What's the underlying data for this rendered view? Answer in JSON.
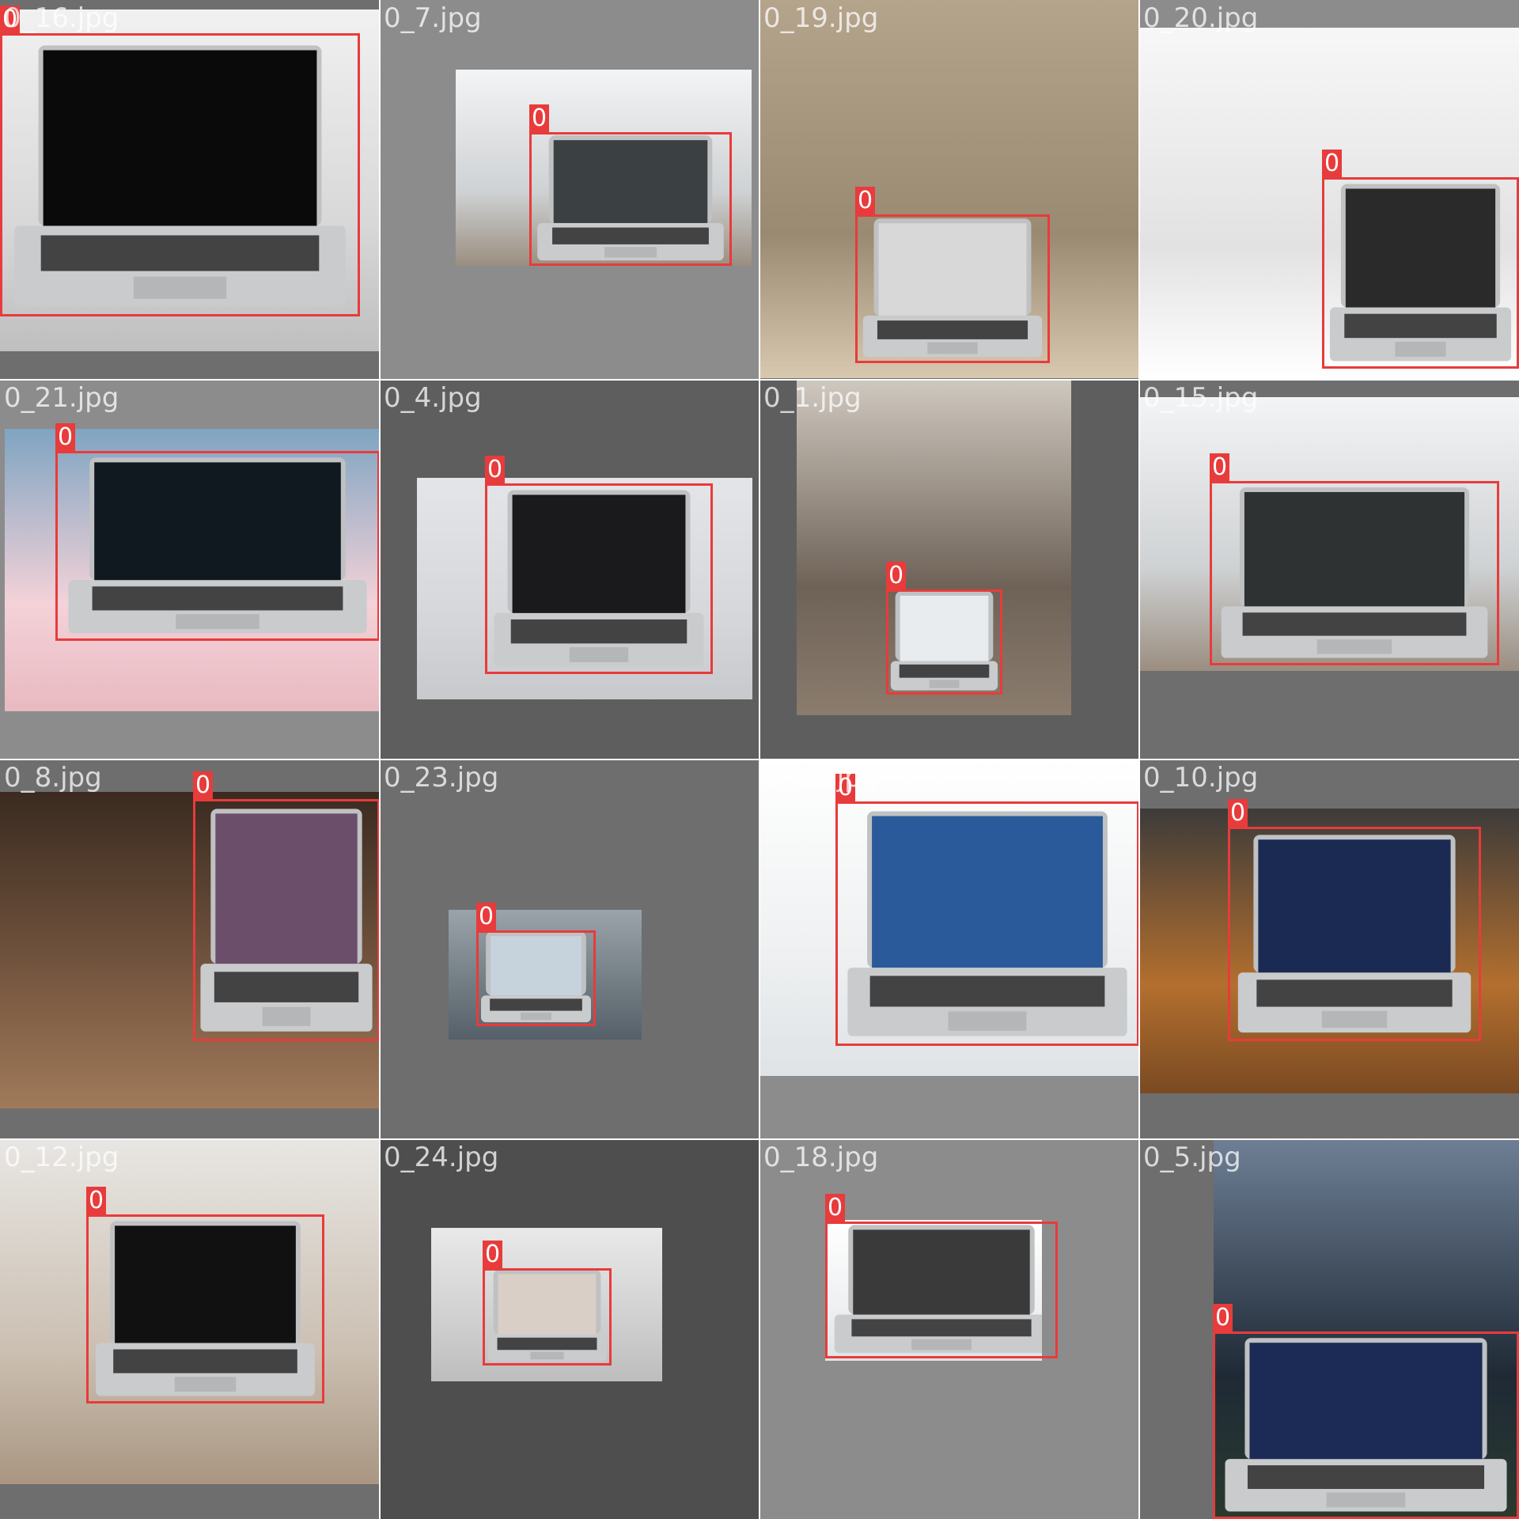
{
  "colors": {
    "box": "#e83b3b",
    "label_text": "#ffffff"
  },
  "tiles": [
    {
      "file": "0_16.jpg",
      "label": "0",
      "pad": "#6e6e6e",
      "scene": "light",
      "laptop": "#0a0a0a"
    },
    {
      "file": "0_7.jpg",
      "label": "0",
      "pad": "#8c8c8c",
      "scene": "office",
      "laptop": "#3b4042"
    },
    {
      "file": "0_19.jpg",
      "label": "0",
      "pad": "#6e6e6e",
      "scene": "beige",
      "laptop": "#d8d8d8"
    },
    {
      "file": "0_20.jpg",
      "label": "0",
      "pad": "#8c8c8c",
      "scene": "blinds",
      "laptop": "#2a2a2a"
    },
    {
      "file": "0_21.jpg",
      "label": "0",
      "pad": "#8c8c8c",
      "scene": "desk",
      "laptop": "#101820"
    },
    {
      "file": "0_4.jpg",
      "label": "0",
      "pad": "#5e5e5e",
      "scene": "studio",
      "laptop": "#1a1a1c"
    },
    {
      "file": "0_1.jpg",
      "label": "0",
      "pad": "#5e5e5e",
      "scene": "room",
      "laptop": "#e9ecef"
    },
    {
      "file": "0_15.jpg",
      "label": "0",
      "pad": "#6e6e6e",
      "scene": "office",
      "laptop": "#2e3232"
    },
    {
      "file": "0_8.jpg",
      "label": "0",
      "pad": "#6e6e6e",
      "scene": "wood",
      "laptop": "#6a4e6a"
    },
    {
      "file": "0_23.jpg",
      "label": "0",
      "pad": "#6e6e6e",
      "scene": "cool",
      "laptop": "#c7d3dc"
    },
    {
      "file": "0_22.jpg",
      "label": "0",
      "pad": "#8c8c8c",
      "scene": "white",
      "laptop": "#2a5a9a"
    },
    {
      "file": "0_10.jpg",
      "label": "0",
      "pad": "#6e6e6e",
      "scene": "cafe",
      "laptop": "#1b2a52"
    },
    {
      "file": "0_12.jpg",
      "label": "0",
      "pad": "#6e6e6e",
      "scene": "shelf",
      "laptop": "#111111"
    },
    {
      "file": "0_24.jpg",
      "label": "0",
      "pad": "#4e4e4e",
      "scene": "grey",
      "laptop": "#d9cfc7"
    },
    {
      "file": "0_18.jpg",
      "label": "0",
      "pad": "#8c8c8c",
      "scene": "white",
      "laptop": "#3a3a3a"
    },
    {
      "file": "0_5.jpg",
      "label": "0",
      "pad": "#6e6e6e",
      "scene": "palms",
      "laptop": "#1b2b55"
    }
  ]
}
